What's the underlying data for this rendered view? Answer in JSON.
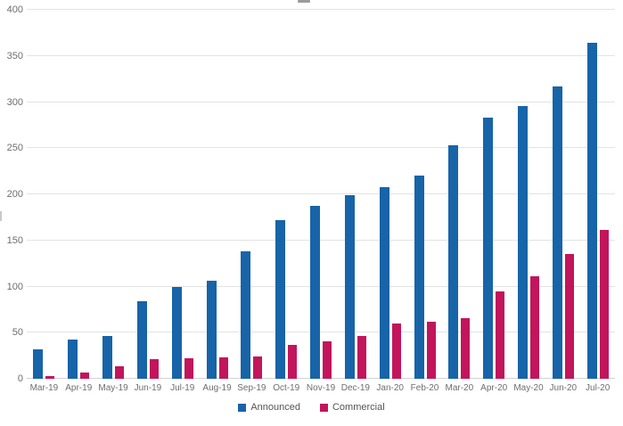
{
  "chart_data": {
    "type": "bar",
    "categories": [
      "Mar-19",
      "Apr-19",
      "May-19",
      "Jun-19",
      "Jul-19",
      "Aug-19",
      "Sep-19",
      "Oct-19",
      "Nov-19",
      "Dec-19",
      "Jan-20",
      "Feb-20",
      "Mar-20",
      "Apr-20",
      "May-20",
      "Jun-20",
      "Jul-20"
    ],
    "series": [
      {
        "name": "Announced",
        "color": "#1764a8",
        "values": [
          32,
          43,
          46,
          84,
          100,
          106,
          138,
          172,
          187,
          199,
          208,
          220,
          253,
          283,
          296,
          317,
          364
        ]
      },
      {
        "name": "Commercial",
        "color": "#c2155b",
        "values": [
          3,
          7,
          14,
          21,
          22,
          23,
          24,
          37,
          41,
          46,
          60,
          62,
          66,
          95,
          111,
          135,
          161
        ]
      }
    ],
    "title": "",
    "xlabel": "",
    "ylabel": "",
    "ylim": [
      0,
      400
    ],
    "yticks": [
      0,
      50,
      100,
      150,
      200,
      250,
      300,
      350,
      400
    ],
    "grid": true,
    "legend_position": "bottom"
  },
  "legend": {
    "items": [
      {
        "label": "Announced",
        "color": "#1764a8"
      },
      {
        "label": "Commercial",
        "color": "#c2155b"
      }
    ]
  },
  "colors": {
    "gridline": "#e3e3e3",
    "axis_text": "#6e6e6e",
    "background": "#ffffff"
  }
}
